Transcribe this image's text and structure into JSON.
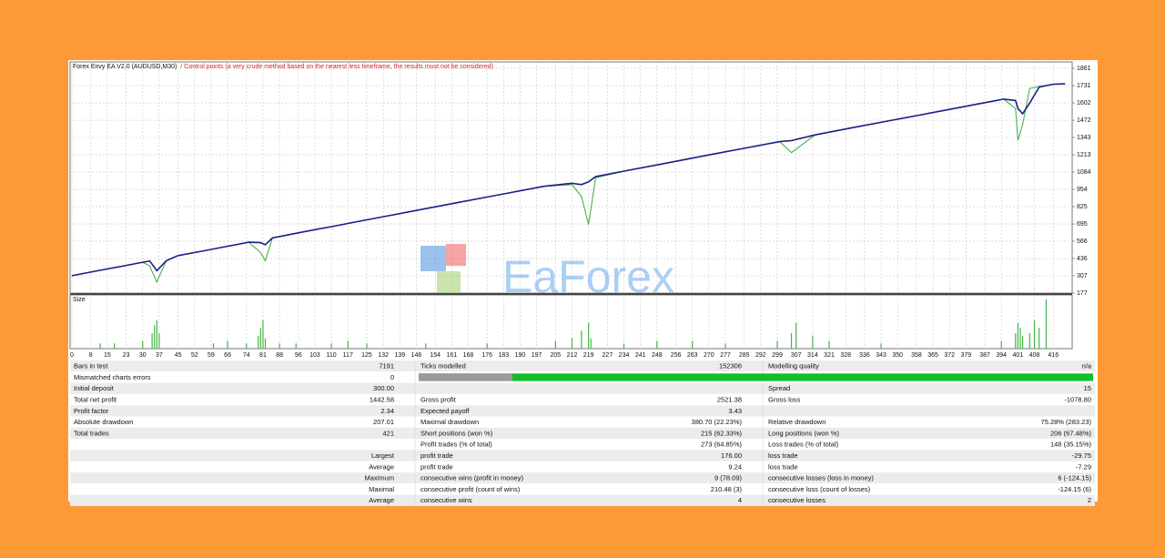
{
  "chart_data": [
    {
      "type": "line",
      "title": "Forex Envy EA V2.0 (AUDUSD,M30)",
      "subtitle": "/ Control points (a very crude method based on the nearest less timeframe, the results must not be considered)",
      "x": [
        0,
        10,
        20,
        30,
        33,
        36,
        40,
        45,
        55,
        65,
        70,
        75,
        80,
        82,
        85,
        95,
        105,
        110,
        120,
        125,
        135,
        150,
        165,
        180,
        200,
        212,
        216,
        219,
        222,
        235,
        250,
        260,
        270,
        285,
        300,
        305,
        315,
        330,
        345,
        360,
        375,
        390,
        395,
        400,
        401,
        403,
        406,
        410,
        416,
        421
      ],
      "series": [
        {
          "color": "#1b1f8a",
          "values": [
            307,
            341,
            374,
            408,
            418,
            345,
            420,
            458,
            491,
            525,
            541,
            558,
            555,
            540,
            590,
            625,
            659,
            675,
            709,
            726,
            759,
            810,
            860,
            910,
            977,
            1000,
            990,
            1010,
            1050,
            1094,
            1144,
            1178,
            1212,
            1262,
            1312,
            1320,
            1362,
            1413,
            1463,
            1513,
            1563,
            1614,
            1630,
            1620,
            1560,
            1520,
            1600,
            1720,
            1742,
            1745
          ]
        },
        {
          "color": "#46b346",
          "values": [
            307,
            341,
            374,
            408,
            380,
            260,
            420,
            458,
            491,
            525,
            541,
            558,
            480,
            420,
            590,
            625,
            659,
            675,
            709,
            726,
            759,
            810,
            860,
            910,
            977,
            990,
            900,
            690,
            1040,
            1094,
            1144,
            1178,
            1212,
            1262,
            1312,
            1230,
            1362,
            1413,
            1463,
            1513,
            1563,
            1614,
            1630,
            1560,
            1320,
            1440,
            1710,
            1725,
            1742,
            1745
          ]
        }
      ],
      "xlim": [
        0,
        424
      ],
      "ylim": [
        177,
        1909
      ],
      "yticks": [
        177,
        307,
        436,
        566,
        695,
        825,
        954,
        1084,
        1213,
        1343,
        1472,
        1602,
        1731,
        1861
      ],
      "grid": true
    },
    {
      "type": "bar",
      "title": "Size",
      "x": [
        12,
        18,
        30,
        34,
        35,
        36,
        37,
        60,
        66,
        74,
        79,
        80,
        81,
        82,
        88,
        95,
        110,
        117,
        125,
        150,
        176,
        205,
        212,
        216,
        219,
        220,
        234,
        248,
        263,
        277,
        299,
        305,
        307,
        314,
        321,
        343,
        394,
        400,
        401,
        402,
        403,
        406,
        408,
        410,
        413
      ],
      "values": [
        1,
        1,
        1.5,
        3,
        4.5,
        5.5,
        3,
        1,
        1.5,
        1,
        2.5,
        4,
        5.5,
        2,
        1,
        1,
        1,
        1.5,
        1,
        1,
        1,
        1.5,
        2,
        3.5,
        5,
        2,
        1,
        1.5,
        1.5,
        1,
        1.5,
        3,
        5,
        2.5,
        1.5,
        1,
        1.5,
        3,
        5,
        4,
        2.5,
        3,
        5.5,
        4,
        9.5
      ],
      "xlim": [
        0,
        424
      ],
      "ylim": [
        0,
        10
      ],
      "xticks": [
        0,
        8,
        15,
        23,
        30,
        37,
        45,
        52,
        59,
        66,
        74,
        81,
        88,
        96,
        103,
        110,
        117,
        125,
        132,
        139,
        146,
        154,
        161,
        168,
        176,
        183,
        190,
        197,
        205,
        212,
        219,
        227,
        234,
        241,
        248,
        256,
        263,
        270,
        277,
        285,
        292,
        299,
        307,
        314,
        321,
        328,
        336,
        343,
        350,
        358,
        365,
        372,
        379,
        387,
        394,
        401,
        408,
        416
      ],
      "color": "#46b346"
    }
  ],
  "watermark": "EaForex",
  "report": {
    "rows": [
      [
        "Bars in test",
        "7191",
        "Ticks modelled",
        "152306",
        "Modelling quality",
        "n/a"
      ],
      [
        "Mismatched charts errors",
        "0",
        null,
        null,
        null,
        null
      ],
      [
        "Initial deposit",
        "300.00",
        null,
        null,
        "Spread",
        "15"
      ],
      [
        "Total net profit",
        "1442.58",
        "Gross profit",
        "2521.38",
        "Gross loss",
        "-1078.80"
      ],
      [
        "Profit factor",
        "2.34",
        "Expected payoff",
        "3.43",
        null,
        null
      ],
      [
        "Absolute drawdown",
        "207.01",
        "Maximal drawdown",
        "380.70 (22.23%)",
        "Relative drawdown",
        "75.28% (283.23)"
      ],
      [
        "Total trades",
        "421",
        "Short positions (won %)",
        "215 (62.33%)",
        "Long positions (won %)",
        "206 (67.48%)"
      ],
      [
        null,
        null,
        "Profit trades (% of total)",
        "273 (64.85%)",
        "Loss trades (% of total)",
        "148 (35.15%)"
      ],
      [
        null,
        "Largest",
        "profit trade",
        "176.00",
        "loss trade",
        "-29.75"
      ],
      [
        null,
        "Average",
        "profit trade",
        "9.24",
        "loss trade",
        "-7.29"
      ],
      [
        null,
        "Maximum",
        "consecutive wins (profit in money)",
        "9 (78.09)",
        "consecutive losses (loss in money)",
        "6 (-124.15)"
      ],
      [
        null,
        "Maximal",
        "consecutive profit (count of wins)",
        "210.48 (3)",
        "consecutive loss (count of losses)",
        "-124.15 (6)"
      ],
      [
        null,
        "Average",
        "consecutive wins",
        "4",
        "consecutive losses",
        "2"
      ]
    ]
  }
}
